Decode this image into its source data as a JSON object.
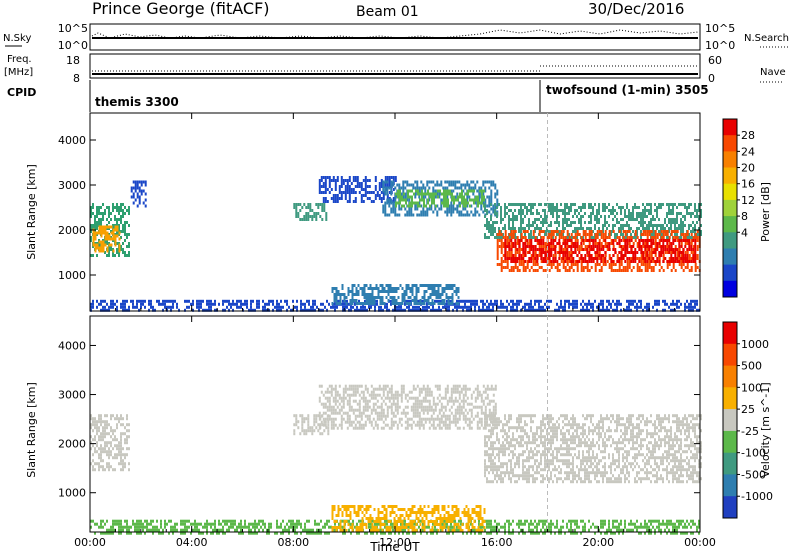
{
  "header": {
    "title": "Prince George (fitACF)",
    "beam": "Beam 01",
    "date": "30/Dec/2016"
  },
  "strip_labels": {
    "nsky": "N.Sky",
    "nsky_ticks": [
      "10^5",
      "10^0"
    ],
    "nsearch": "N.Search",
    "nsearch_ticks": [
      "10^5",
      "10^0"
    ],
    "freq_line1": "Freq.",
    "freq_line2": "[MHz]",
    "freq_ticks": [
      "18",
      "8"
    ],
    "nave": "Nave",
    "nave_ticks": [
      "60",
      "0"
    ],
    "cpid": "CPID",
    "cpid_modes": [
      "themis 3300",
      "twofsound (1-min) 3505"
    ]
  },
  "chart_data": [
    {
      "type": "heatmap",
      "name": "power",
      "ylabel": "Slant Range [km]",
      "xlabel": "",
      "x_ticks": [
        "00:00",
        "04:00",
        "08:00",
        "12:00",
        "16:00",
        "20:00",
        "00:00"
      ],
      "y_ticks": [
        1000,
        2000,
        3000,
        4000
      ],
      "ylim": [
        200,
        4600
      ],
      "xlim_hours": [
        0,
        24
      ],
      "colorbar": {
        "label": "Power [dB]",
        "ticks": [
          "28",
          "24",
          "20",
          "16",
          "12",
          "8",
          "4"
        ],
        "colors": [
          "#0000e0",
          "#1a46c8",
          "#2e7eb0",
          "#3f9a80",
          "#5cb84a",
          "#9fd23a",
          "#e8e000",
          "#f8b000",
          "#f88000",
          "#f84800",
          "#e80000"
        ]
      },
      "regions": [
        {
          "t0": 0.0,
          "t1": 1.5,
          "r0": 1450,
          "r1": 2600,
          "color": "#2ea070"
        },
        {
          "t0": 0.1,
          "t1": 1.2,
          "r0": 1550,
          "r1": 2100,
          "color": "#f8a000"
        },
        {
          "t0": 1.6,
          "t1": 2.2,
          "r0": 2500,
          "r1": 3100,
          "color": "#1a46c8"
        },
        {
          "t0": 8.0,
          "t1": 9.4,
          "r0": 2200,
          "r1": 2600,
          "color": "#3f9a80"
        },
        {
          "t0": 9.0,
          "t1": 12.0,
          "r0": 2600,
          "r1": 3200,
          "color": "#1a46c8"
        },
        {
          "t0": 11.5,
          "t1": 16.0,
          "r0": 2300,
          "r1": 3100,
          "color": "#2e7eb0"
        },
        {
          "t0": 12.0,
          "t1": 15.5,
          "r0": 2500,
          "r1": 2900,
          "color": "#5cb84a"
        },
        {
          "t0": 15.5,
          "t1": 24.0,
          "r0": 1800,
          "r1": 2600,
          "color": "#3f9a80"
        },
        {
          "t0": 16.0,
          "t1": 24.0,
          "r0": 1100,
          "r1": 2000,
          "color": "#f84800"
        },
        {
          "t0": 16.3,
          "t1": 23.8,
          "r0": 1300,
          "r1": 1800,
          "color": "#e80000"
        },
        {
          "t0": 0.0,
          "t1": 24.0,
          "r0": 200,
          "r1": 450,
          "color": "#1a46c8"
        },
        {
          "t0": 9.5,
          "t1": 14.5,
          "r0": 350,
          "r1": 800,
          "color": "#2e7eb0"
        }
      ]
    },
    {
      "type": "heatmap",
      "name": "velocity",
      "ylabel": "Slant Range [km]",
      "xlabel": "Time UT",
      "x_ticks": [
        "00:00",
        "04:00",
        "08:00",
        "12:00",
        "16:00",
        "20:00",
        "00:00"
      ],
      "y_ticks": [
        1000,
        2000,
        3000,
        4000
      ],
      "ylim": [
        200,
        4600
      ],
      "xlim_hours": [
        0,
        24
      ],
      "colorbar": {
        "label": "Velocity [m s^-1]",
        "ticks": [
          "1000",
          "500",
          "100",
          "25",
          "-25",
          "-100",
          "-500",
          "-1000"
        ],
        "colors": [
          "#2040c0",
          "#2e7eb0",
          "#3f9a80",
          "#5cb84a",
          "#c8c8c0",
          "#f8b000",
          "#f88000",
          "#f84800",
          "#e80000"
        ]
      },
      "regions": [
        {
          "t0": 0.0,
          "t1": 1.5,
          "r0": 1450,
          "r1": 2600,
          "color": "#c8c8c0"
        },
        {
          "t0": 8.0,
          "t1": 9.4,
          "r0": 2200,
          "r1": 2600,
          "color": "#c8c8c0"
        },
        {
          "t0": 9.0,
          "t1": 16.0,
          "r0": 2300,
          "r1": 3200,
          "color": "#c8c8c0"
        },
        {
          "t0": 15.5,
          "t1": 24.0,
          "r0": 1200,
          "r1": 2600,
          "color": "#c8c8c0"
        },
        {
          "t0": 0.0,
          "t1": 24.0,
          "r0": 200,
          "r1": 450,
          "color": "#5cb84a"
        },
        {
          "t0": 9.5,
          "t1": 15.5,
          "r0": 250,
          "r1": 750,
          "color": "#f8b000"
        }
      ]
    }
  ]
}
